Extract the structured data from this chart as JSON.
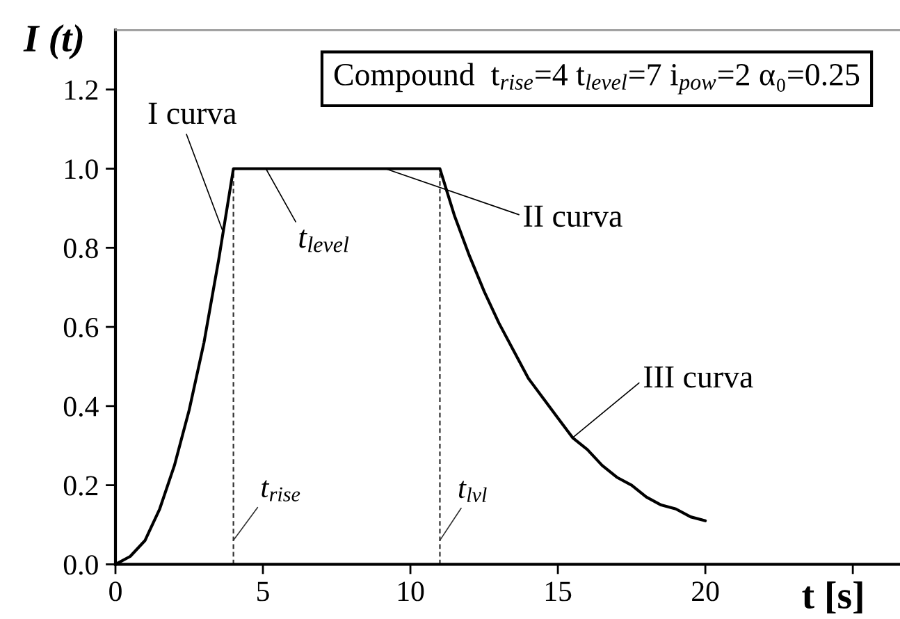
{
  "chart_data": {
    "type": "line",
    "xlabel": "t [s]",
    "ylabel": "I (t)",
    "x": [
      0,
      0.5,
      1,
      1.5,
      2,
      2.5,
      3,
      3.5,
      4,
      11,
      11.5,
      12,
      12.5,
      13,
      13.5,
      14,
      14.5,
      15,
      15.5,
      16,
      16.5,
      17,
      17.5,
      18,
      18.5,
      19,
      19.5,
      20
    ],
    "series": [
      {
        "color": "#000000",
        "values": [
          0,
          0.02,
          0.06,
          0.14,
          0.25,
          0.39,
          0.56,
          0.77,
          1.0,
          1.0,
          0.88,
          0.78,
          0.69,
          0.61,
          0.54,
          0.47,
          0.42,
          0.37,
          0.32,
          0.29,
          0.25,
          0.22,
          0.2,
          0.17,
          0.15,
          0.14,
          0.12,
          0.11
        ]
      }
    ],
    "xlim": [
      0,
      26.6
    ],
    "xticks": [
      0,
      5,
      10,
      15,
      20,
      {
        "value": 25,
        "label": null
      }
    ],
    "ylim": [
      0,
      1.35
    ],
    "yticks": [
      {
        "value": 0,
        "label": "0.0"
      },
      0.2,
      0.4,
      0.6,
      0.8,
      {
        "value": 1,
        "label": "1.0"
      },
      1.2
    ],
    "ref_lines": [
      {
        "axis": "x",
        "value": 4,
        "label": "t$_{rise}$",
        "color": "#333333",
        "line_style": "dashed"
      },
      {
        "axis": "x",
        "value": 11,
        "label": "t$_{lvl}$",
        "color": "#333333",
        "line_style": "dashed"
      }
    ],
    "annotations": [
      "Compound  t$_{rise}$=4 t$_{level}$=7 i$_{pow}$=2 α₀=0.25",
      {
        "text": "I curva",
        "x": 3.65,
        "y": 0.84
      },
      {
        "text": "t$_{level}$",
        "x": 5.1,
        "y": 1.0
      },
      {
        "text": "II curva",
        "x": 9.15,
        "y": 1.0
      },
      {
        "text": "III curva",
        "x": 15.5,
        "y": 0.32
      }
    ]
  }
}
